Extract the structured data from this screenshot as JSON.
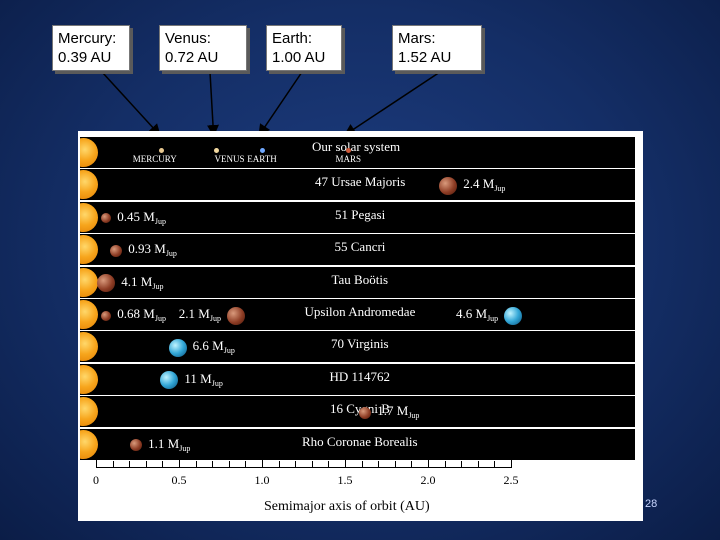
{
  "callouts": [
    {
      "text": "Mercury:\n0.39 AU",
      "au": 0.39
    },
    {
      "text": "Venus:\n0.72 AU",
      "au": 0.72
    },
    {
      "text": "Earth:\n1.00 AU",
      "au": 1.0
    },
    {
      "text": "Mars:\n1.52 AU",
      "au": 1.52
    }
  ],
  "axis": {
    "title": "Semimajor axis of orbit (AU)",
    "ticks": [
      "0",
      "0.5",
      "1.0",
      "1.5",
      "2.0",
      "2.5"
    ],
    "range": [
      0,
      2.5
    ]
  },
  "solar_system": {
    "name": "Our solar system",
    "planets": [
      {
        "name": "MERCURY",
        "au": 0.39
      },
      {
        "name": "VENUS",
        "au": 0.72
      },
      {
        "name": "EARTH",
        "au": 1.0
      },
      {
        "name": "MARS",
        "au": 1.52
      }
    ]
  },
  "systems": [
    {
      "name": "47 Ursae Majoris",
      "planets": [
        {
          "au": 2.11,
          "mass": "2.4",
          "color": "brown",
          "label_side": "right"
        }
      ]
    },
    {
      "name": "51 Pegasi",
      "planets": [
        {
          "au": 0.05,
          "mass": "0.45",
          "color": "brown",
          "label_side": "right"
        }
      ]
    },
    {
      "name": "55 Cancri",
      "planets": [
        {
          "au": 0.11,
          "mass": "0.93",
          "color": "brown",
          "label_side": "right"
        }
      ]
    },
    {
      "name": "Tau Boötis",
      "planets": [
        {
          "au": 0.05,
          "mass": "4.1",
          "color": "brown",
          "label_side": "right"
        }
      ]
    },
    {
      "name": "Upsilon Andromedae",
      "planets": [
        {
          "au": 0.05,
          "mass": "0.68",
          "color": "brown",
          "label_side": "right"
        },
        {
          "au": 0.83,
          "mass": "2.1",
          "color": "brown",
          "label_side": "left"
        },
        {
          "au": 2.5,
          "mass": "4.6",
          "color": "blue",
          "label_side": "left"
        }
      ]
    },
    {
      "name": "70 Virginis",
      "planets": [
        {
          "au": 0.48,
          "mass": "6.6",
          "color": "blue",
          "label_side": "right"
        }
      ]
    },
    {
      "name": "HD 114762",
      "planets": [
        {
          "au": 0.43,
          "mass": "11",
          "color": "blue",
          "label_side": "right"
        }
      ]
    },
    {
      "name": "16 Cygni B",
      "planets": [
        {
          "au": 1.61,
          "mass": "1.7",
          "color": "brown",
          "label_side": "right"
        }
      ]
    },
    {
      "name": "Rho Coronae Borealis",
      "planets": [
        {
          "au": 0.23,
          "mass": "1.1",
          "color": "brown",
          "label_side": "right"
        }
      ]
    }
  ],
  "mass_unit": {
    "main": "M",
    "sub": "Jup"
  },
  "page_number": "28"
}
